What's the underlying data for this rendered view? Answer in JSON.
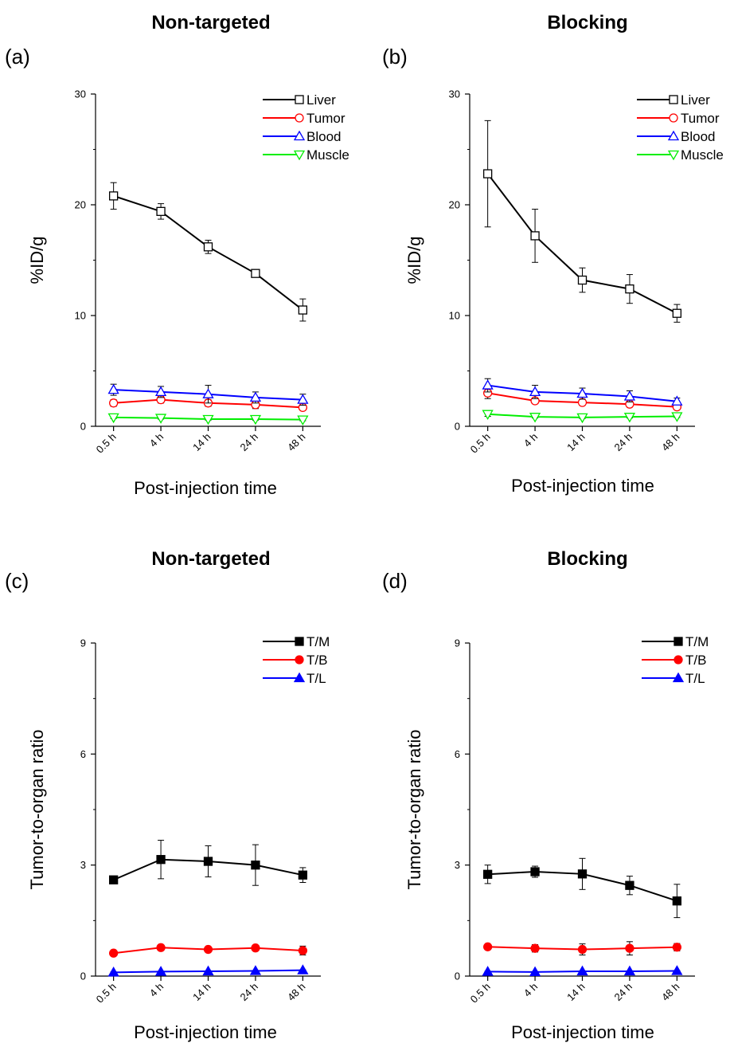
{
  "chart_data": [
    {
      "type": "line",
      "panel_label": "(a)",
      "title": "Non-targeted",
      "xlabel": "Post-injection time",
      "ylabel": "%ID/g",
      "categories": [
        "0.5 h",
        "4 h",
        "14 h",
        "24 h",
        "48 h"
      ],
      "ylim": [
        0,
        30
      ],
      "yticks": [
        0,
        10,
        20,
        30
      ],
      "legend_position": "top-right",
      "series": [
        {
          "name": "Liver",
          "color": "#000000",
          "marker": "open-square",
          "values": [
            20.8,
            19.4,
            16.2,
            13.8,
            10.5
          ],
          "errors": [
            1.2,
            0.7,
            0.6,
            0.2,
            1.0
          ]
        },
        {
          "name": "Tumor",
          "color": "#ff0000",
          "marker": "open-circle",
          "values": [
            2.1,
            2.4,
            2.1,
            1.95,
            1.7
          ],
          "errors": [
            0.3,
            0.3,
            0.3,
            0.35,
            0.2
          ]
        },
        {
          "name": "Blood",
          "color": "#0000ff",
          "marker": "open-triangle-up",
          "values": [
            3.3,
            3.1,
            2.9,
            2.6,
            2.4
          ],
          "errors": [
            0.5,
            0.5,
            0.8,
            0.5,
            0.5
          ]
        },
        {
          "name": "Muscle",
          "color": "#00ee00",
          "marker": "open-triangle-down",
          "values": [
            0.8,
            0.75,
            0.65,
            0.65,
            0.6
          ],
          "errors": [
            0.1,
            0.1,
            0.1,
            0.1,
            0.1
          ]
        }
      ]
    },
    {
      "type": "line",
      "panel_label": "(b)",
      "title": "Blocking",
      "xlabel": "Post-injection time",
      "ylabel": "%ID/g",
      "categories": [
        "0.5 h",
        "4 h",
        "14 h",
        "24 h",
        "48 h"
      ],
      "ylim": [
        0,
        30
      ],
      "yticks": [
        0,
        10,
        20,
        30
      ],
      "legend_position": "top-right",
      "series": [
        {
          "name": "Liver",
          "color": "#000000",
          "marker": "open-square",
          "values": [
            22.8,
            17.2,
            13.2,
            12.4,
            10.2
          ],
          "errors": [
            4.8,
            2.4,
            1.1,
            1.3,
            0.8
          ]
        },
        {
          "name": "Tumor",
          "color": "#ff0000",
          "marker": "open-circle",
          "values": [
            3.0,
            2.3,
            2.15,
            2.0,
            1.75
          ],
          "errors": [
            0.5,
            0.2,
            0.2,
            0.2,
            0.2
          ]
        },
        {
          "name": "Blood",
          "color": "#0000ff",
          "marker": "open-triangle-up",
          "values": [
            3.7,
            3.1,
            2.95,
            2.7,
            2.25
          ],
          "errors": [
            0.6,
            0.6,
            0.5,
            0.5,
            0.3
          ]
        },
        {
          "name": "Muscle",
          "color": "#00ee00",
          "marker": "open-triangle-down",
          "values": [
            1.1,
            0.85,
            0.8,
            0.85,
            0.9
          ],
          "errors": [
            0.2,
            0.1,
            0.1,
            0.1,
            0.1
          ]
        }
      ]
    },
    {
      "type": "line",
      "panel_label": "(c)",
      "title": "Non-targeted",
      "xlabel": "Post-injection time",
      "ylabel": "Tumor-to-organ ratio",
      "categories": [
        "0.5 h",
        "4 h",
        "14 h",
        "24 h",
        "48 h"
      ],
      "ylim": [
        0,
        9
      ],
      "yticks": [
        0,
        3,
        6,
        9
      ],
      "legend_position": "top-right",
      "series": [
        {
          "name": "T/M",
          "color": "#000000",
          "marker": "filled-square",
          "values": [
            2.6,
            3.15,
            3.1,
            3.0,
            2.73
          ],
          "errors": [
            0.08,
            0.52,
            0.42,
            0.55,
            0.2
          ]
        },
        {
          "name": "T/B",
          "color": "#ff0000",
          "marker": "filled-circle",
          "values": [
            0.62,
            0.77,
            0.72,
            0.76,
            0.69
          ],
          "errors": [
            0.05,
            0.05,
            0.05,
            0.05,
            0.12
          ]
        },
        {
          "name": "T/L",
          "color": "#0000ff",
          "marker": "filled-triangle-up",
          "values": [
            0.1,
            0.12,
            0.13,
            0.14,
            0.16
          ],
          "errors": [
            0.01,
            0.01,
            0.01,
            0.01,
            0.01
          ]
        }
      ]
    },
    {
      "type": "line",
      "panel_label": "(d)",
      "title": "Blocking",
      "xlabel": "Post-injection time",
      "ylabel": "Tumor-to-organ ratio",
      "categories": [
        "0.5 h",
        "4 h",
        "14 h",
        "24 h",
        "48 h"
      ],
      "ylim": [
        0,
        9
      ],
      "yticks": [
        0,
        3,
        6,
        9
      ],
      "legend_position": "top-right",
      "series": [
        {
          "name": "T/M",
          "color": "#000000",
          "marker": "filled-square",
          "values": [
            2.75,
            2.82,
            2.76,
            2.45,
            2.03
          ],
          "errors": [
            0.25,
            0.15,
            0.42,
            0.25,
            0.45
          ]
        },
        {
          "name": "T/B",
          "color": "#ff0000",
          "marker": "filled-circle",
          "values": [
            0.79,
            0.75,
            0.72,
            0.75,
            0.78
          ],
          "errors": [
            0.05,
            0.1,
            0.15,
            0.18,
            0.1
          ]
        },
        {
          "name": "T/L",
          "color": "#0000ff",
          "marker": "filled-triangle-up",
          "values": [
            0.12,
            0.11,
            0.13,
            0.13,
            0.14
          ],
          "errors": [
            0.01,
            0.01,
            0.01,
            0.01,
            0.01
          ]
        }
      ]
    }
  ]
}
